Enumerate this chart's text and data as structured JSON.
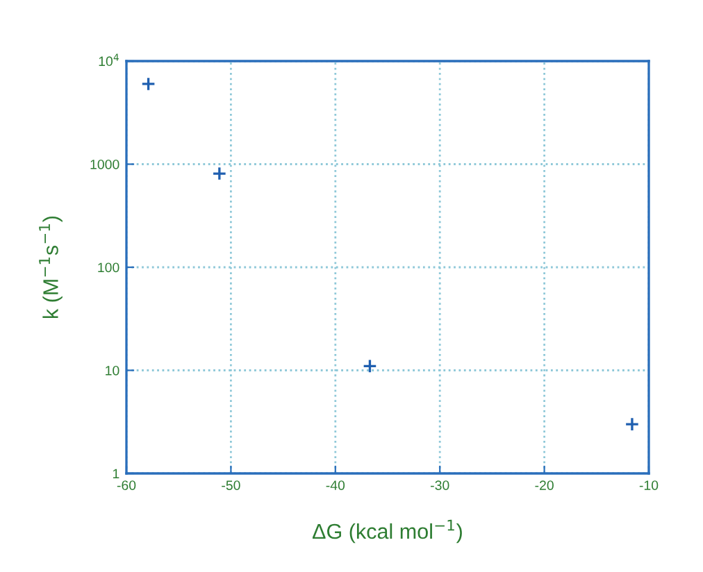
{
  "chart_data": {
    "type": "scatter",
    "xlabel": "ΔG (kcal mol$^{−1}$)",
    "ylabel": "k (M$^{−1}$s$^{−1}$)",
    "x": [
      -57.9,
      -51.1,
      -36.7,
      -11.6
    ],
    "series": [
      {
        "color": "#1f5fb0",
        "values": [
          6000,
          810,
          11,
          3
        ]
      }
    ],
    "marker": "cross",
    "log": "y",
    "grid": true,
    "xlim": [
      -60,
      -10
    ],
    "xticks": [
      -60,
      -50,
      -40,
      -30,
      -20,
      -10
    ],
    "ylim": [
      1,
      10000
    ],
    "yticks": [
      1,
      10,
      100,
      1000,
      {
        "value": 10000,
        "label": "10$^{4}$"
      }
    ]
  }
}
